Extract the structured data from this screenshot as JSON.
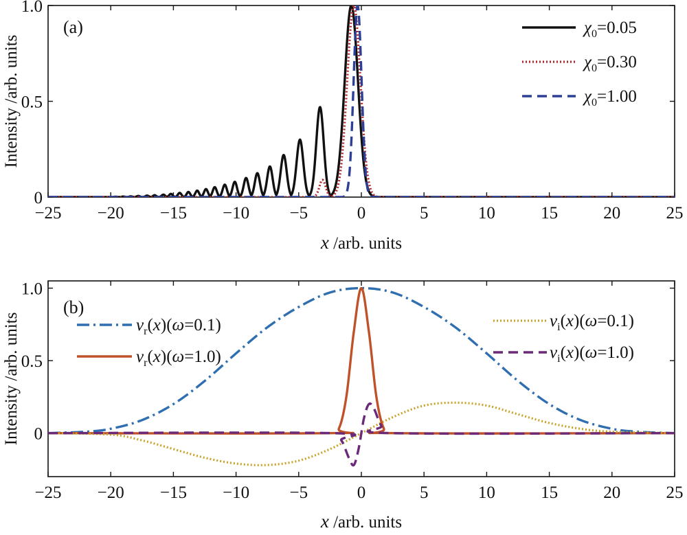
{
  "chart_data": [
    {
      "type": "line",
      "panel_label": "(a)",
      "xlabel_var": "x",
      "xlabel_unit": " /arb. units",
      "ylabel": "Intensity /arb. units",
      "xlim": [
        -25,
        25
      ],
      "ylim": [
        0,
        1.0
      ],
      "xticks": [
        -25,
        -20,
        -15,
        -10,
        -5,
        0,
        5,
        10,
        15,
        20,
        25
      ],
      "yticks": [
        0,
        0.5,
        1.0
      ],
      "ytick_labels": [
        "0",
        "0.5",
        "1.0"
      ],
      "grid": false,
      "legend_position": "top-right",
      "series": [
        {
          "name": "χ0=0.05",
          "legend_var": "χ",
          "legend_sub": "0",
          "legend_tail": "=0.05",
          "style": "solid",
          "color": "#111111",
          "peaks": [
            [
              -0.8,
              1.0,
              0.75
            ],
            [
              -3.3,
              0.47,
              0.42
            ],
            [
              -4.9,
              0.3,
              0.38
            ],
            [
              -6.2,
              0.22,
              0.34
            ],
            [
              -7.3,
              0.16,
              0.31
            ],
            [
              -8.3,
              0.125,
              0.29
            ],
            [
              -9.2,
              0.1,
              0.27
            ],
            [
              -10.1,
              0.08,
              0.25
            ],
            [
              -10.9,
              0.065,
              0.24
            ],
            [
              -11.7,
              0.052,
              0.23
            ],
            [
              -12.4,
              0.042,
              0.22
            ],
            [
              -13.1,
              0.034,
              0.21
            ],
            [
              -13.8,
              0.027,
              0.2
            ],
            [
              -14.5,
              0.022,
              0.2
            ],
            [
              -15.2,
              0.017,
              0.19
            ],
            [
              -15.8,
              0.013,
              0.19
            ],
            [
              -16.5,
              0.01,
              0.18
            ],
            [
              -17.1,
              0.008,
              0.18
            ],
            [
              -17.8,
              0.006,
              0.18
            ],
            [
              -18.4,
              0.004,
              0.17
            ],
            [
              -19.0,
              0.003,
              0.17
            ],
            [
              -19.6,
              0.002,
              0.17
            ]
          ]
        },
        {
          "name": "χ0=0.30",
          "legend_var": "χ",
          "legend_sub": "0",
          "legend_tail": "=0.30",
          "style": "dotted",
          "color": "#b0262a",
          "peaks": [
            [
              -0.6,
              1.0,
              0.75
            ],
            [
              -3.1,
              0.09,
              0.35
            ]
          ]
        },
        {
          "name": "χ0=1.00",
          "legend_var": "χ",
          "legend_sub": "0",
          "legend_tail": "=1.00",
          "style": "dashed",
          "color": "#2d3f96",
          "peaks": [
            [
              -0.3,
              1.0,
              0.45
            ]
          ]
        }
      ]
    },
    {
      "type": "line",
      "panel_label": "(b)",
      "xlabel_var": "x",
      "xlabel_unit": " /arb. units",
      "ylabel": "Intensity /arb. units",
      "xlim": [
        -25,
        25
      ],
      "ylim": [
        -0.3,
        1.05
      ],
      "xticks": [
        -25,
        -20,
        -15,
        -10,
        -5,
        0,
        5,
        10,
        15,
        20,
        25
      ],
      "yticks": [
        0,
        0.5,
        1.0
      ],
      "ytick_labels": [
        "0",
        "0.5",
        "1.0"
      ],
      "grid": false,
      "legend_position": "split top-left and top-right",
      "series": [
        {
          "name": "vr(x)(ω=0.1)",
          "legend_parts": [
            "v",
            "r",
            "(x)(",
            "ω",
            "=0.1)"
          ],
          "style": "dashdot",
          "color": "#2f6fb0",
          "points": [
            [
              -25,
              0.0
            ],
            [
              -22,
              0.01
            ],
            [
              -20,
              0.03
            ],
            [
              -17.5,
              0.09
            ],
            [
              -15,
              0.2
            ],
            [
              -12.5,
              0.36
            ],
            [
              -10,
              0.55
            ],
            [
              -7.5,
              0.73
            ],
            [
              -5,
              0.87
            ],
            [
              -2.5,
              0.97
            ],
            [
              0,
              1.0
            ],
            [
              2.5,
              0.97
            ],
            [
              5,
              0.87
            ],
            [
              7.5,
              0.73
            ],
            [
              10,
              0.55
            ],
            [
              12.5,
              0.36
            ],
            [
              15,
              0.2
            ],
            [
              17.5,
              0.09
            ],
            [
              20,
              0.03
            ],
            [
              22,
              0.01
            ],
            [
              25,
              0.0
            ]
          ]
        },
        {
          "name": "vr(x)(ω=1.0)",
          "legend_parts": [
            "v",
            "r",
            "(x)(",
            "ω",
            "=1.0)"
          ],
          "style": "solid",
          "color": "#c0522a",
          "points": [
            [
              -25,
              0
            ],
            [
              -2.5,
              0
            ],
            [
              -1.8,
              0.03
            ],
            [
              -1.2,
              0.25
            ],
            [
              -0.6,
              0.7
            ],
            [
              0,
              1.0
            ],
            [
              0.6,
              0.7
            ],
            [
              1.2,
              0.25
            ],
            [
              1.8,
              0.03
            ],
            [
              2.5,
              0
            ],
            [
              25,
              0
            ]
          ]
        },
        {
          "name": "vi(x)(ω=0.1)",
          "legend_parts": [
            "v",
            "i",
            "(x)(",
            "ω",
            "=0.1)"
          ],
          "style": "dotted",
          "color": "#c9a227",
          "points": [
            [
              -25,
              0
            ],
            [
              -20,
              -0.01
            ],
            [
              -17.5,
              -0.05
            ],
            [
              -15,
              -0.11
            ],
            [
              -12.5,
              -0.17
            ],
            [
              -10,
              -0.21
            ],
            [
              -7.5,
              -0.22
            ],
            [
              -5,
              -0.19
            ],
            [
              -2.5,
              -0.11
            ],
            [
              0,
              0
            ],
            [
              2.5,
              0.11
            ],
            [
              5,
              0.19
            ],
            [
              7.5,
              0.21
            ],
            [
              10,
              0.19
            ],
            [
              12.5,
              0.13
            ],
            [
              15,
              0.07
            ],
            [
              17.5,
              0.03
            ],
            [
              20,
              0.01
            ],
            [
              25,
              0
            ]
          ]
        },
        {
          "name": "vi(x)(ω=1.0)",
          "legend_parts": [
            "v",
            "i",
            "(x)(",
            "ω",
            "=1.0)"
          ],
          "style": "dashed",
          "color": "#6a2a78",
          "points": [
            [
              -25,
              0
            ],
            [
              -2.4,
              0
            ],
            [
              -1.6,
              -0.05
            ],
            [
              -1.0,
              -0.17
            ],
            [
              -0.6,
              -0.22
            ],
            [
              -0.2,
              -0.1
            ],
            [
              0.2,
              0.1
            ],
            [
              0.6,
              0.2
            ],
            [
              1.0,
              0.17
            ],
            [
              1.6,
              0.05
            ],
            [
              2.4,
              0
            ],
            [
              25,
              0
            ]
          ]
        }
      ]
    }
  ]
}
